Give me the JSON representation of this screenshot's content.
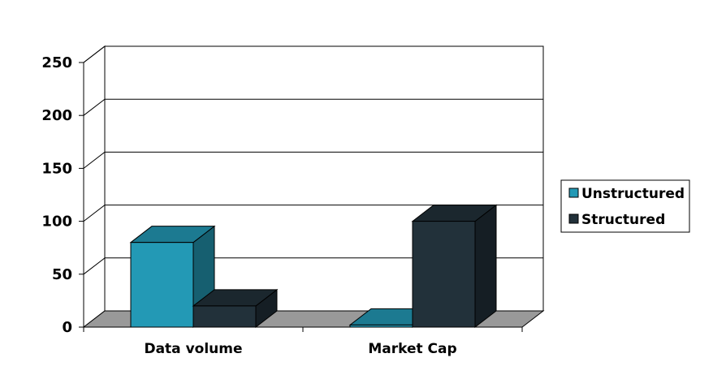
{
  "chart_data": {
    "type": "bar",
    "style": "3d-clustered-column",
    "categories": [
      "Data volume",
      "Market Cap"
    ],
    "series": [
      {
        "name": "Unstructured",
        "values": [
          80,
          2
        ],
        "color": "#2399b5"
      },
      {
        "name": "Structured",
        "values": [
          20,
          100
        ],
        "color": "#22313a"
      }
    ],
    "ylim": [
      0,
      250
    ],
    "yticks": [
      0,
      50,
      100,
      150,
      200,
      250
    ],
    "grid": true,
    "legend_position": "right",
    "floor_color": "#999999"
  }
}
